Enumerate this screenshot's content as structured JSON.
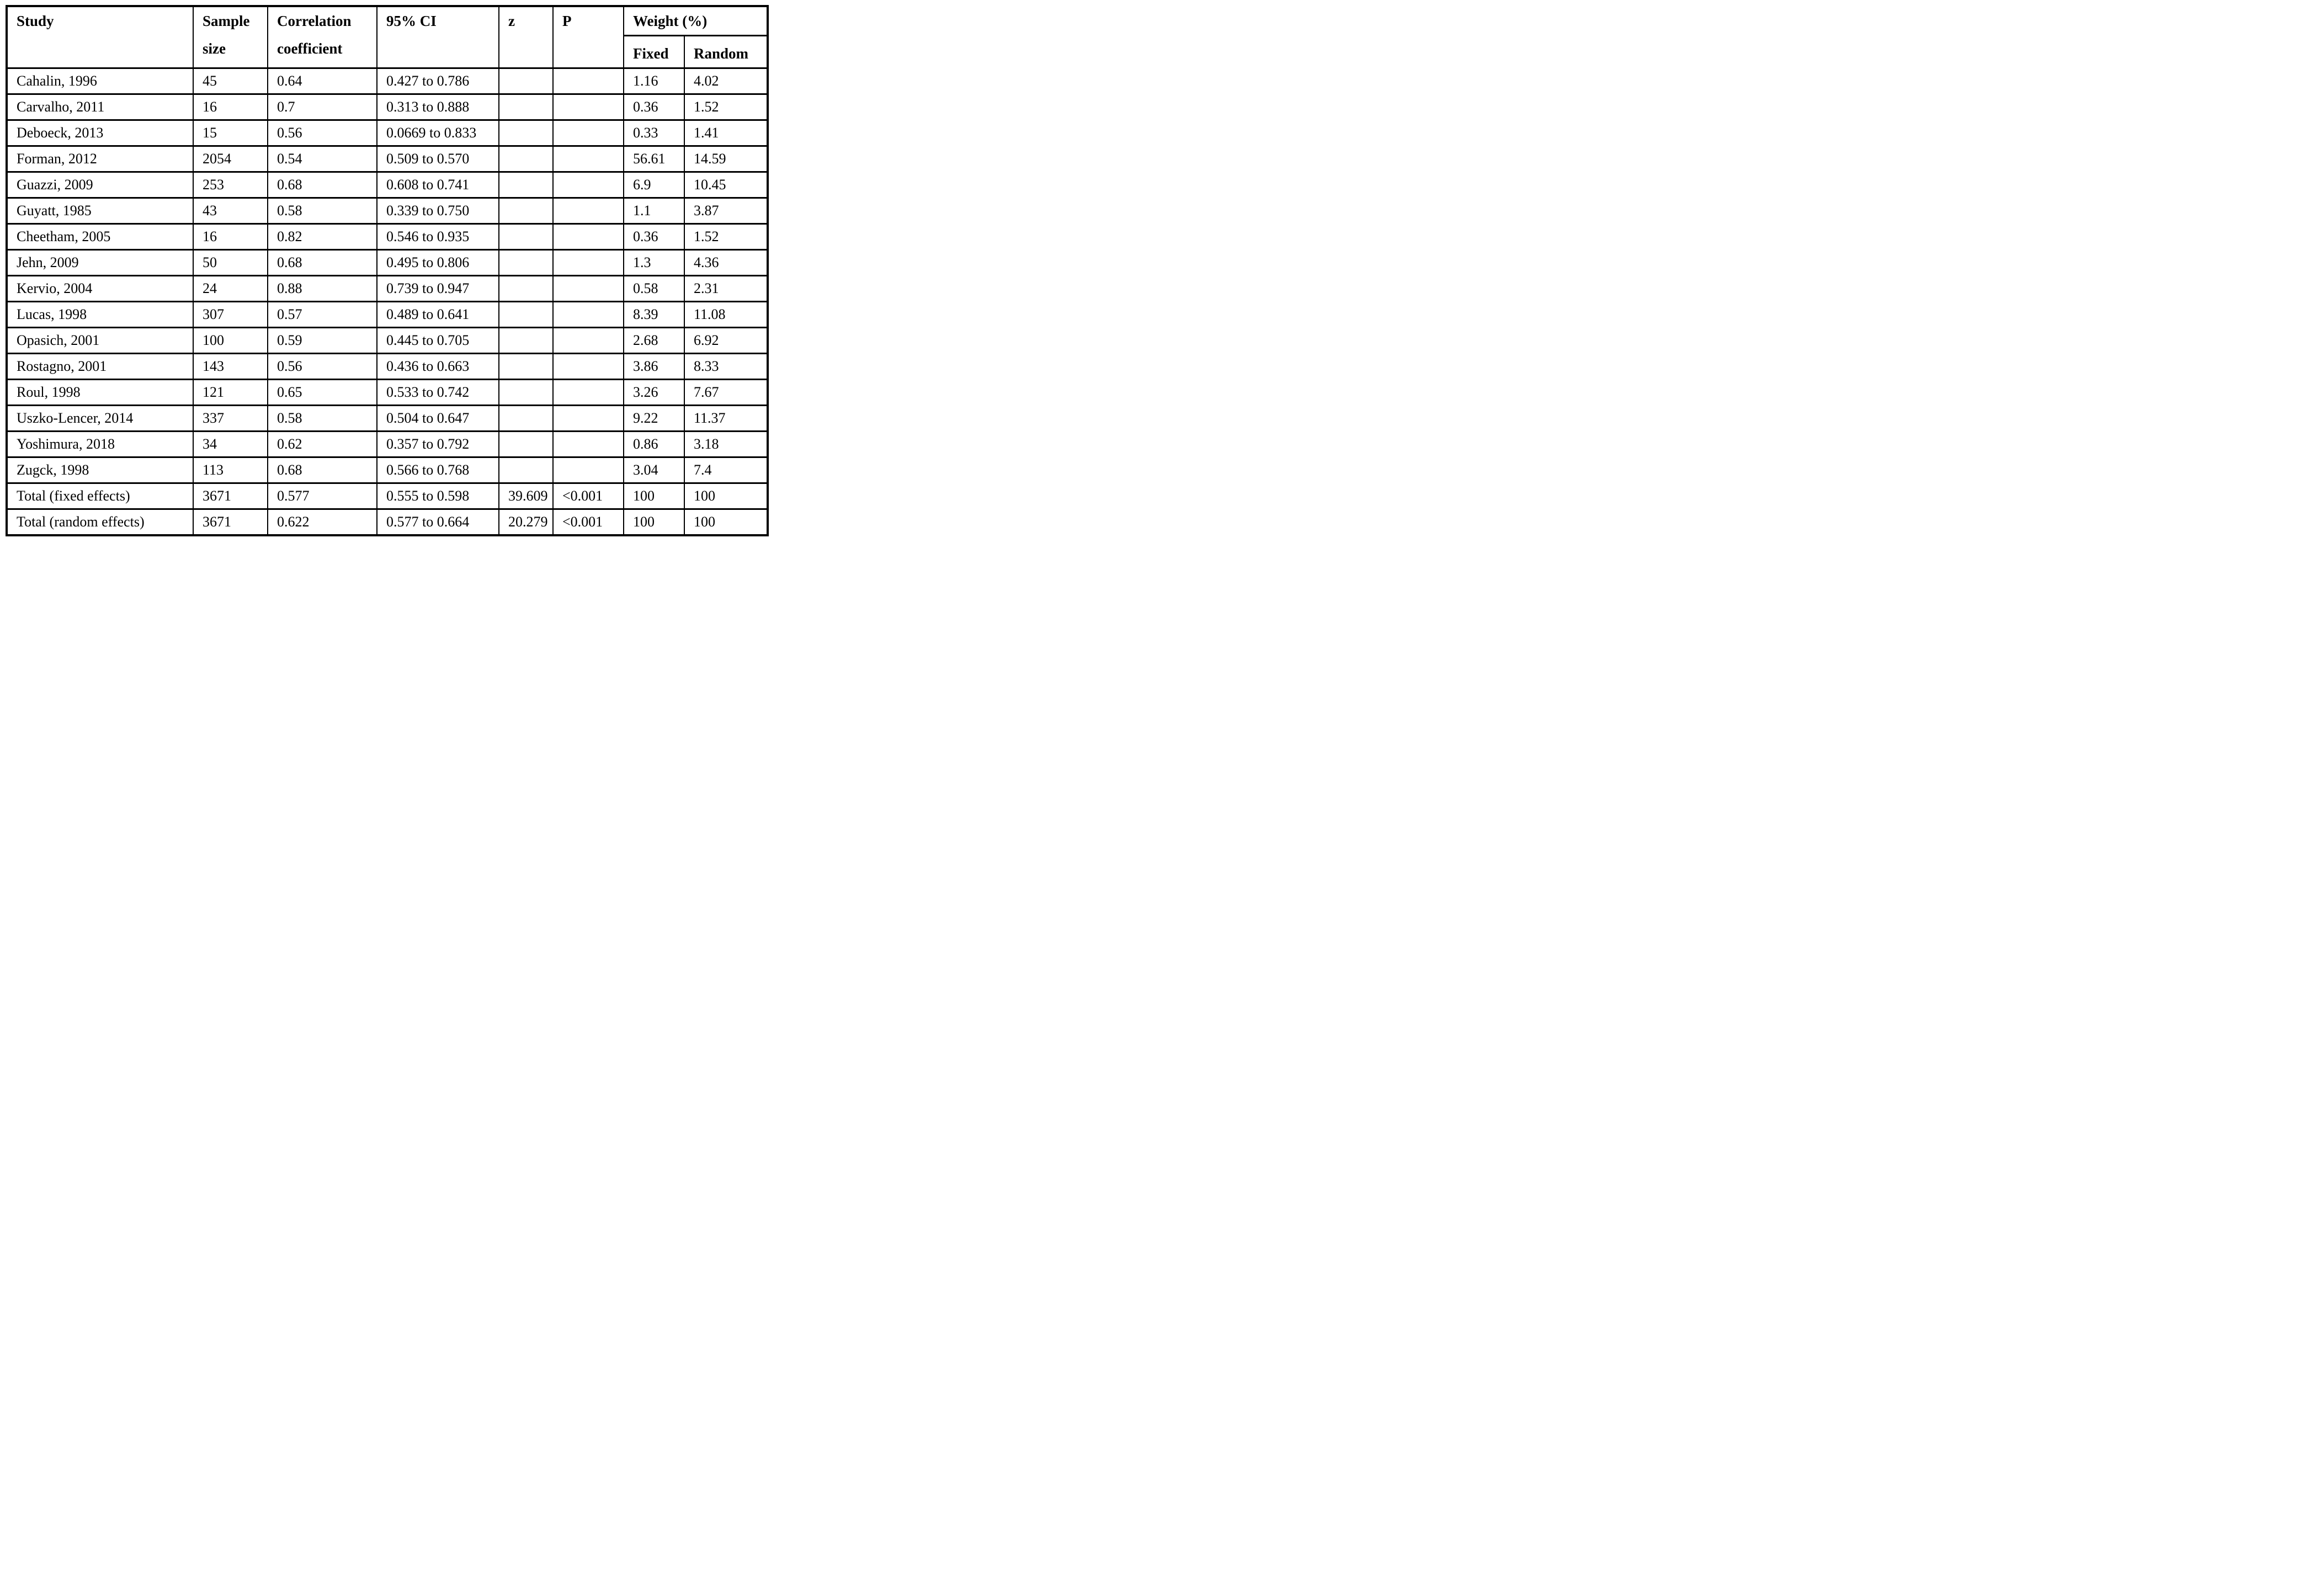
{
  "table": {
    "columns": {
      "study": "Study",
      "sample_size": "Sample size",
      "correlation": "Correlation coefficient",
      "ci": "95% CI",
      "z": "z",
      "p": "P",
      "weight_group": "Weight (%)",
      "weight_fixed": "Fixed",
      "weight_random": "Random"
    },
    "rows": [
      {
        "study": "Cahalin, 1996",
        "sample_size": "45",
        "correlation": "0.64",
        "ci": "0.427 to 0.786",
        "z": "",
        "p": "",
        "weight_fixed": "1.16",
        "weight_random": "4.02"
      },
      {
        "study": "Carvalho, 2011",
        "sample_size": "16",
        "correlation": "0.7",
        "ci": "0.313 to 0.888",
        "z": "",
        "p": "",
        "weight_fixed": "0.36",
        "weight_random": "1.52"
      },
      {
        "study": "Deboeck, 2013",
        "sample_size": "15",
        "correlation": "0.56",
        "ci": "0.0669 to 0.833",
        "z": "",
        "p": "",
        "weight_fixed": "0.33",
        "weight_random": "1.41"
      },
      {
        "study": "Forman, 2012",
        "sample_size": "2054",
        "correlation": "0.54",
        "ci": "0.509 to 0.570",
        "z": "",
        "p": "",
        "weight_fixed": "56.61",
        "weight_random": "14.59"
      },
      {
        "study": "Guazzi, 2009",
        "sample_size": "253",
        "correlation": "0.68",
        "ci": "0.608 to 0.741",
        "z": "",
        "p": "",
        "weight_fixed": "6.9",
        "weight_random": "10.45"
      },
      {
        "study": "Guyatt, 1985",
        "sample_size": "43",
        "correlation": "0.58",
        "ci": "0.339 to 0.750",
        "z": "",
        "p": "",
        "weight_fixed": "1.1",
        "weight_random": "3.87"
      },
      {
        "study": "Cheetham, 2005",
        "sample_size": "16",
        "correlation": "0.82",
        "ci": "0.546 to 0.935",
        "z": "",
        "p": "",
        "weight_fixed": "0.36",
        "weight_random": "1.52"
      },
      {
        "study": "Jehn, 2009",
        "sample_size": "50",
        "correlation": "0.68",
        "ci": "0.495 to 0.806",
        "z": "",
        "p": "",
        "weight_fixed": "1.3",
        "weight_random": "4.36"
      },
      {
        "study": "Kervio, 2004",
        "sample_size": "24",
        "correlation": "0.88",
        "ci": "0.739 to 0.947",
        "z": "",
        "p": "",
        "weight_fixed": "0.58",
        "weight_random": "2.31"
      },
      {
        "study": "Lucas, 1998",
        "sample_size": "307",
        "correlation": "0.57",
        "ci": "0.489 to 0.641",
        "z": "",
        "p": "",
        "weight_fixed": "8.39",
        "weight_random": "11.08"
      },
      {
        "study": "Opasich, 2001",
        "sample_size": "100",
        "correlation": "0.59",
        "ci": "0.445 to 0.705",
        "z": "",
        "p": "",
        "weight_fixed": "2.68",
        "weight_random": "6.92"
      },
      {
        "study": "Rostagno, 2001",
        "sample_size": "143",
        "correlation": "0.56",
        "ci": "0.436 to 0.663",
        "z": "",
        "p": "",
        "weight_fixed": "3.86",
        "weight_random": "8.33"
      },
      {
        "study": "Roul, 1998",
        "sample_size": "121",
        "correlation": "0.65",
        "ci": "0.533 to 0.742",
        "z": "",
        "p": "",
        "weight_fixed": "3.26",
        "weight_random": "7.67"
      },
      {
        "study": "Uszko-Lencer, 2014",
        "sample_size": "337",
        "correlation": "0.58",
        "ci": "0.504 to 0.647",
        "z": "",
        "p": "",
        "weight_fixed": "9.22",
        "weight_random": "11.37"
      },
      {
        "study": "Yoshimura, 2018",
        "sample_size": "34",
        "correlation": "0.62",
        "ci": "0.357 to 0.792",
        "z": "",
        "p": "",
        "weight_fixed": "0.86",
        "weight_random": "3.18"
      },
      {
        "study": "Zugck, 1998",
        "sample_size": "113",
        "correlation": "0.68",
        "ci": "0.566 to 0.768",
        "z": "",
        "p": "",
        "weight_fixed": "3.04",
        "weight_random": "7.4"
      },
      {
        "study": "Total (fixed effects)",
        "sample_size": "3671",
        "correlation": "0.577",
        "ci": "0.555 to 0.598",
        "z": "39.609",
        "p": "<0.001",
        "weight_fixed": "100",
        "weight_random": "100"
      },
      {
        "study": "Total (random effects)",
        "sample_size": "3671",
        "correlation": "0.622",
        "ci": "0.577 to 0.664",
        "z": "20.279",
        "p": "<0.001",
        "weight_fixed": "100",
        "weight_random": "100"
      }
    ]
  }
}
